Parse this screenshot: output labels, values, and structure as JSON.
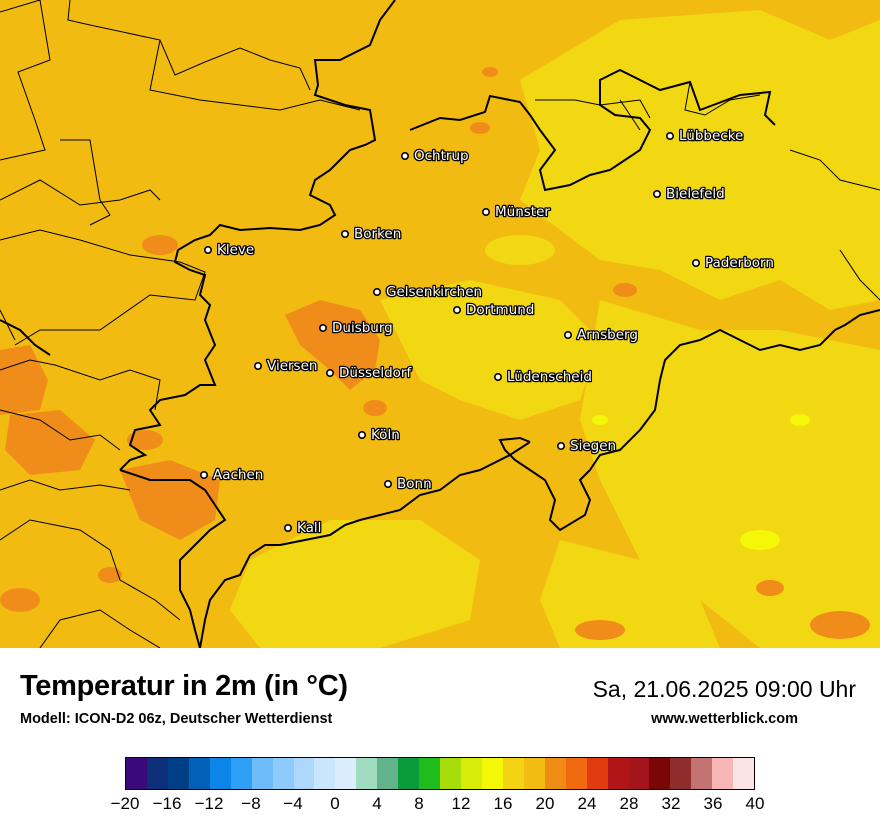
{
  "map": {
    "base_color": "#f2bb12",
    "warm_color": "#f08c1a",
    "cool_color": "#f2d713",
    "cities": [
      {
        "name": "Lübbecke"
      },
      {
        "name": "Ochtrup"
      },
      {
        "name": "Bielefeld"
      },
      {
        "name": "Münster"
      },
      {
        "name": "Borken"
      },
      {
        "name": "Kleve"
      },
      {
        "name": "Paderborn"
      },
      {
        "name": "Gelsenkirchen"
      },
      {
        "name": "Dortmund"
      },
      {
        "name": "Duisburg"
      },
      {
        "name": "Arnsberg"
      },
      {
        "name": "Viersen"
      },
      {
        "name": "Düsseldorf"
      },
      {
        "name": "Lüdenscheid"
      },
      {
        "name": "Köln"
      },
      {
        "name": "Siegen"
      },
      {
        "name": "Aachen"
      },
      {
        "name": "Bonn"
      },
      {
        "name": "Kall"
      }
    ]
  },
  "footer": {
    "title": "Temperatur in 2m (in °C)",
    "model": "Modell: ICON-D2 06z, Deutscher Wetterdienst",
    "datetime": "Sa, 21.06.2025 09:00 Uhr",
    "source": "www.wetterblick.com"
  },
  "legend": {
    "unit": "°C",
    "min": -20,
    "max": 40,
    "step": 2,
    "colors": [
      "#3a0a7a",
      "#0e2f7a",
      "#003e86",
      "#0360b8",
      "#0b86e8",
      "#2fa0f5",
      "#6fbcfa",
      "#8ccbfb",
      "#add8fc",
      "#c9e6fd",
      "#dbecfd",
      "#9fdcc2",
      "#60b38a",
      "#0a9b3a",
      "#1fbd1b",
      "#a8dd0d",
      "#d8ec0a",
      "#f4f707",
      "#f3d313",
      "#f2bc12",
      "#f08c16",
      "#f06a12",
      "#e23b10",
      "#b11518",
      "#a4141b",
      "#7a0606",
      "#8f2d2d",
      "#c47373",
      "#f7b5b5",
      "#fde4e4"
    ],
    "tick_labels": [
      "−20",
      "−16",
      "−12",
      "−8",
      "−4",
      "0",
      "4",
      "8",
      "12",
      "16",
      "20",
      "24",
      "28",
      "32",
      "36",
      "40"
    ]
  }
}
